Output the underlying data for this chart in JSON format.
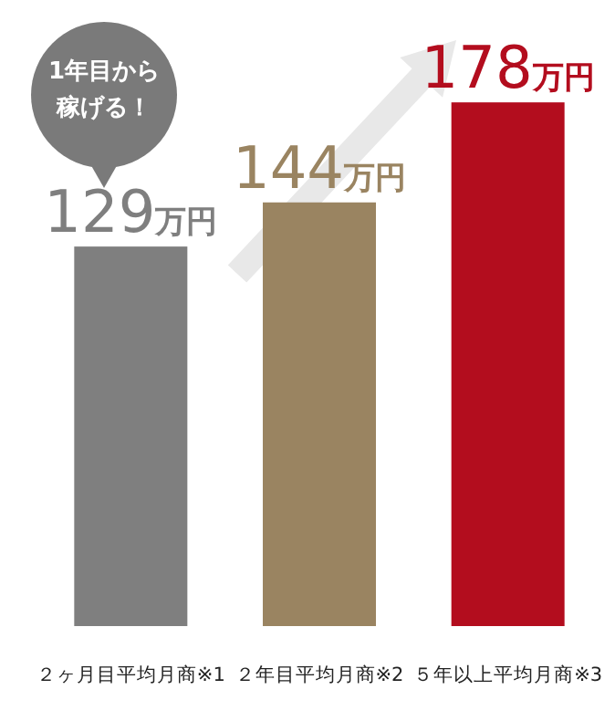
{
  "chart_data": {
    "type": "bar",
    "categories": [
      "２ヶ月目平均月商※1",
      "２年目平均月商※2",
      "５年以上平均月商※3"
    ],
    "values": [
      129,
      144,
      178
    ],
    "colors": [
      "#7f7f7f",
      "#9a8461",
      "#b30d1e"
    ],
    "value_labels": [
      "129万円",
      "144万円",
      "178万円"
    ],
    "annotations": [
      "1年目から稼げる！"
    ]
  }
}
